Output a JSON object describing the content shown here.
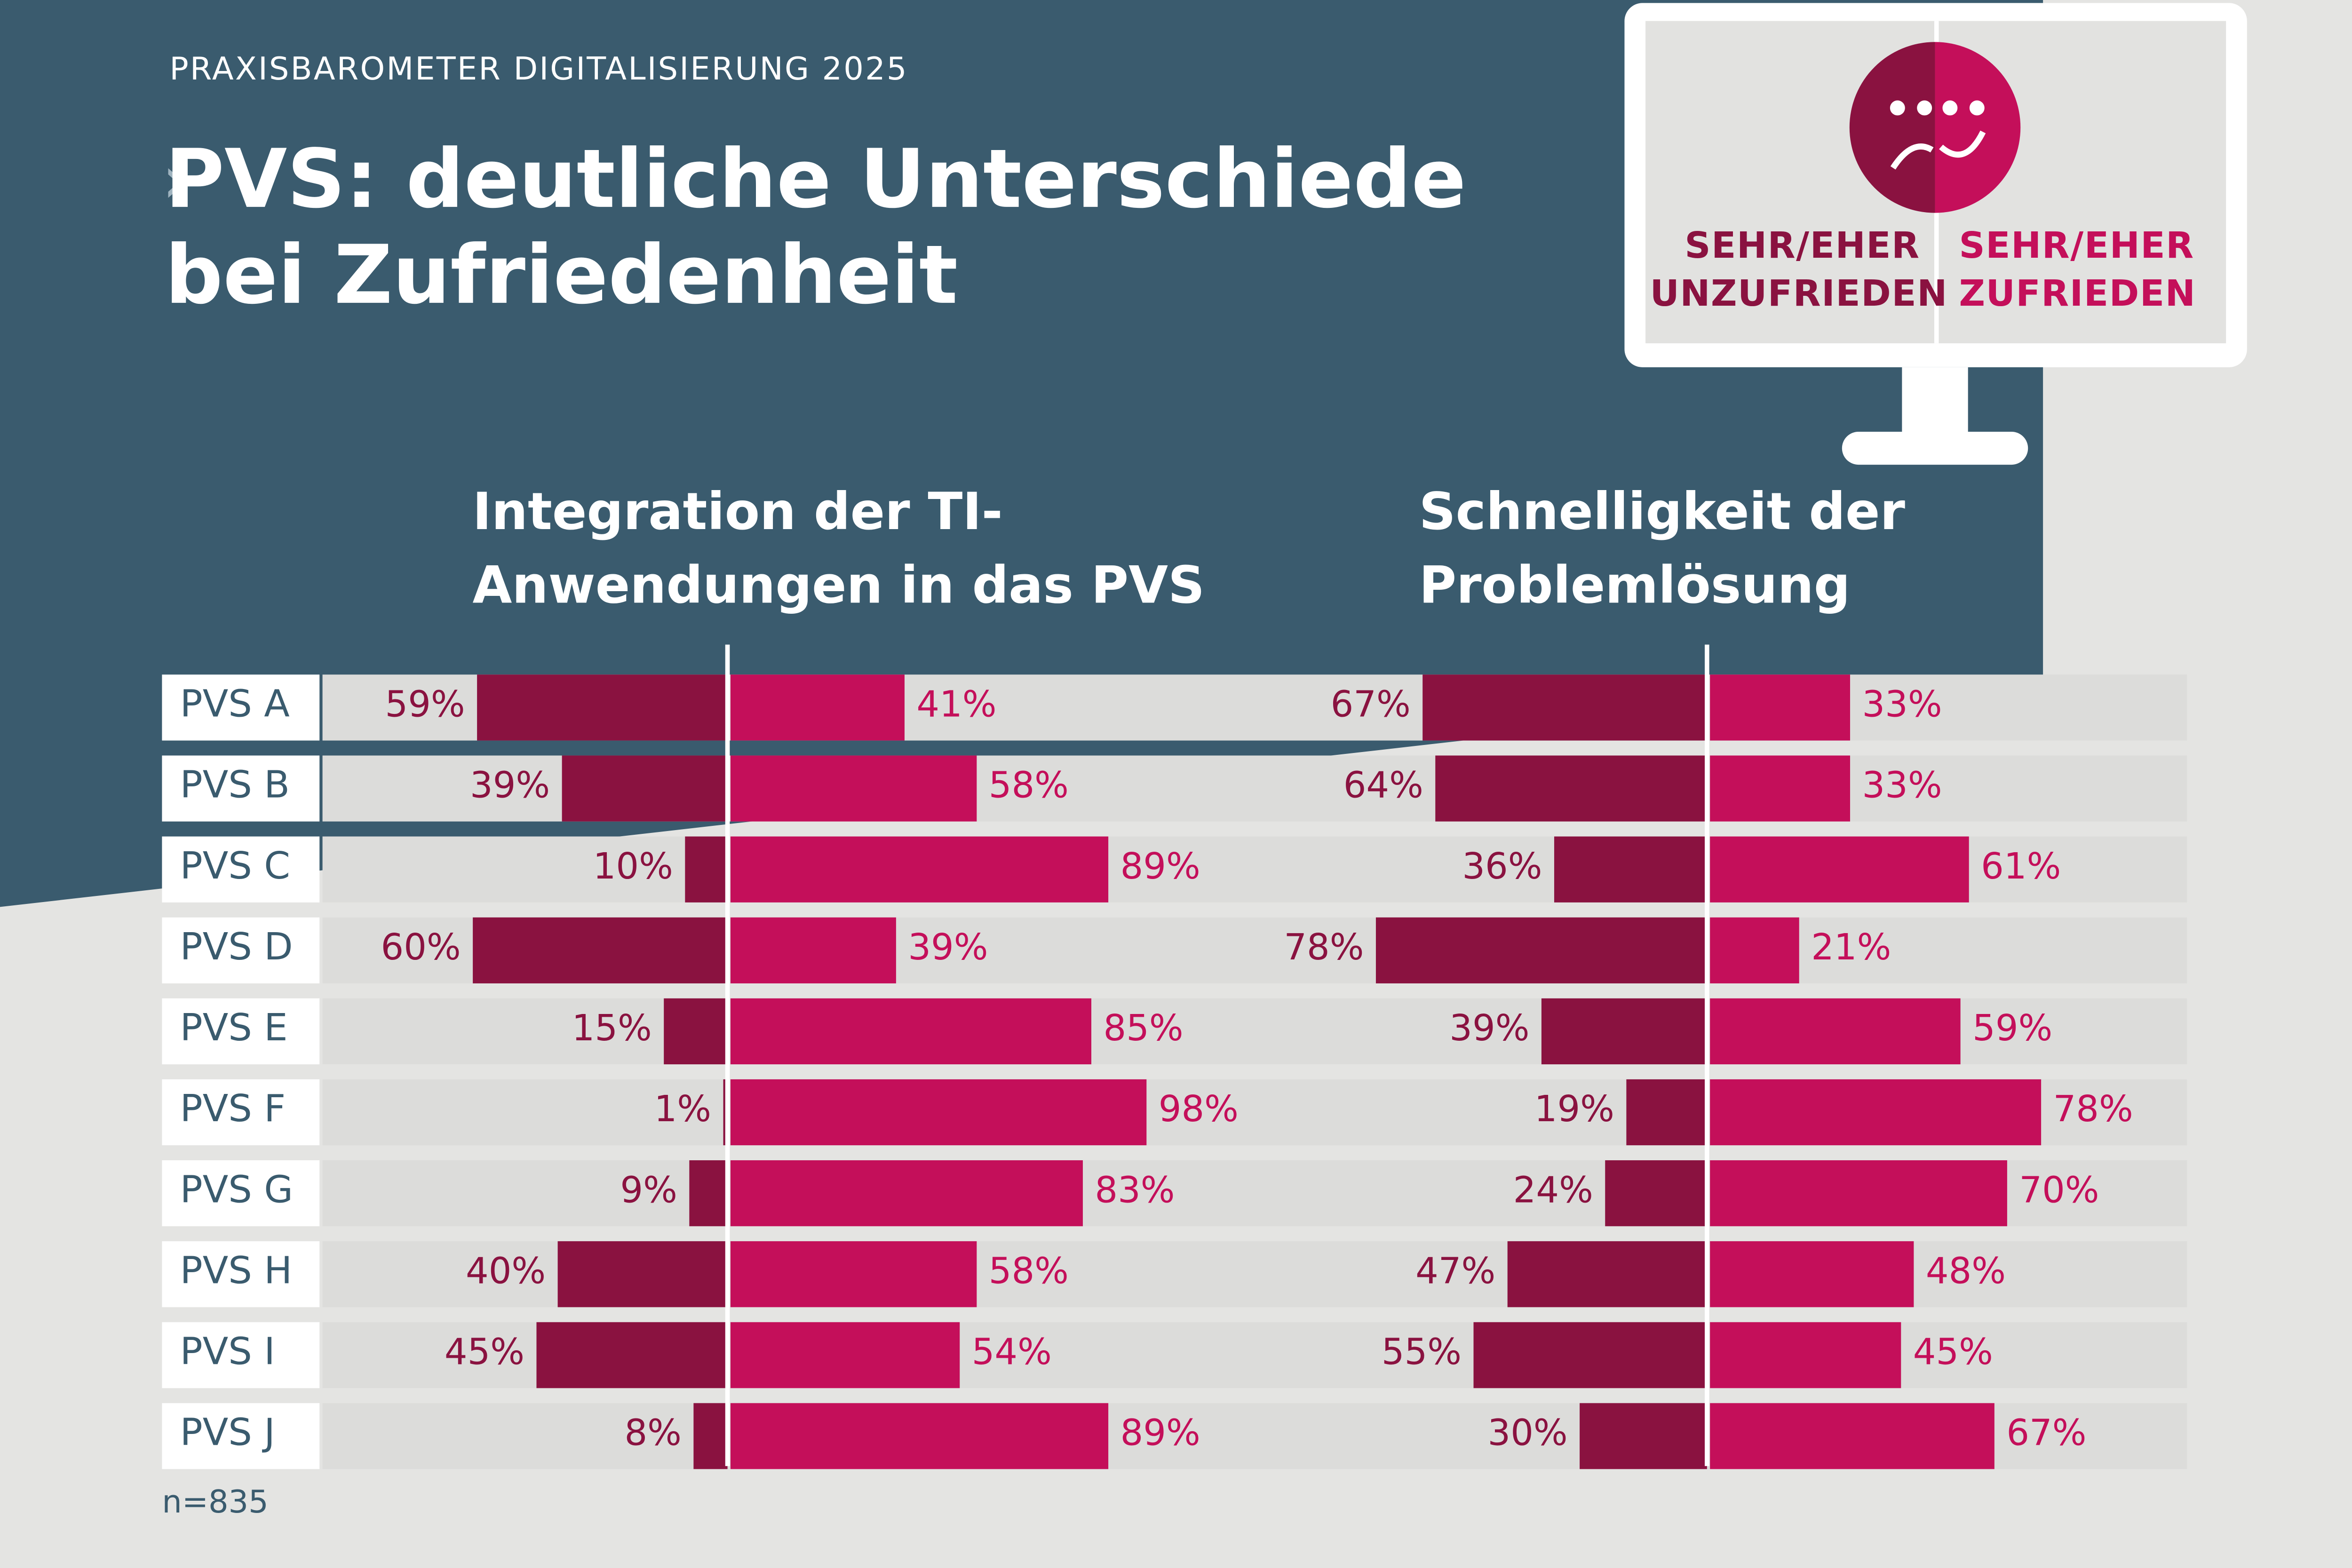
{
  "supertitle": "PRAXISBAROMETER DIGITALISIERUNG 2025",
  "title": "PVS: deutliche Unterschiede bei Zufriedenheit",
  "note": "n=835",
  "chart_data": {
    "type": "bar",
    "categories": [
      "PVS A",
      "PVS B",
      "PVS C",
      "PVS D",
      "PVS E",
      "PVS F",
      "PVS G",
      "PVS H",
      "PVS I",
      "PVS J"
    ],
    "series": [
      {
        "name": "SEHR/EHER UNZUFRIEDEN",
        "color": "#8a1240"
      },
      {
        "name": "SEHR/EHER ZUFRIEDEN",
        "color": "#c40f5a"
      }
    ],
    "panels": [
      {
        "title": "Integration der TI-Anwendungen in das PVS",
        "series": [
          {
            "values": [
              59,
              39,
              10,
              60,
              15,
              1,
              9,
              40,
              45,
              8
            ],
            "value_labels": [
              "59%",
              "39%",
              "10%",
              "60%",
              "15%",
              "1%",
              "9%",
              "40%",
              "45%",
              "8%"
            ]
          },
          {
            "values": [
              41,
              58,
              89,
              39,
              85,
              98,
              83,
              58,
              54,
              89
            ],
            "value_labels": [
              "41%",
              "58%",
              "89%",
              "39%",
              "85%",
              "98%",
              "83%",
              "58%",
              "54%",
              "89%"
            ]
          }
        ]
      },
      {
        "title": "Schnelligkeit der Problemlösung",
        "series": [
          {
            "values": [
              67,
              64,
              36,
              78,
              39,
              19,
              24,
              47,
              55,
              30
            ],
            "value_labels": [
              "67%",
              "64%",
              "36%",
              "78%",
              "39%",
              "19%",
              "24%",
              "47%",
              "55%",
              "30%"
            ]
          },
          {
            "values": [
              33,
              33,
              61,
              21,
              59,
              78,
              70,
              48,
              45,
              67
            ],
            "value_labels": [
              "33%",
              "33%",
              "61%",
              "21%",
              "59%",
              "78%",
              "70%",
              "48%",
              "45%",
              "67%"
            ]
          }
        ]
      }
    ]
  }
}
